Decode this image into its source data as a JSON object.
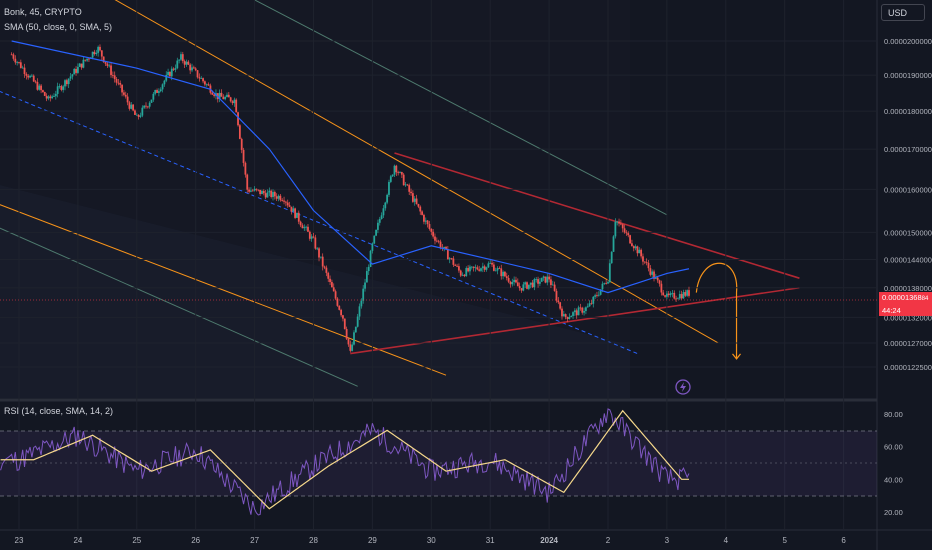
{
  "header": {
    "title": "Bonk, 45, CRYPTO",
    "sma_legend": "SMA (50, close, 0, SMA, 5)",
    "currency": "USD"
  },
  "rsi_legend": "RSI (14, close, SMA, 14, 2)",
  "last_price": {
    "value": "0.00001368",
    "value_suffix": "84",
    "countdown": "44:24"
  },
  "colors": {
    "background": "#131722",
    "candle_up": "#26a69a",
    "candle_down": "#ef5350",
    "sma": "#2962ff",
    "channel_orange": "#f7931a",
    "channel_green": "#4e7a6e",
    "wedge_red": "#b22833",
    "median_dashed": "#2962ff",
    "rsi_line": "#7e57c2",
    "rsi_ma": "#f5d88b",
    "rsi_band": "#7e57c2",
    "projection": "#f7931a",
    "price_line": "#f23645"
  },
  "chart_data": [
    {
      "type": "candlestick",
      "symbol": "Bonk",
      "interval": "45",
      "x_tick_labels": [
        "23",
        "24",
        "25",
        "26",
        "27",
        "28",
        "29",
        "30",
        "31",
        "2024",
        "2",
        "3",
        "4",
        "5",
        "6"
      ],
      "y_tick_labels": [
        "0.0000200000",
        "0.0000190000",
        "0.0000180000",
        "0.0000170000",
        "0.0000160000",
        "0.0000150000",
        "0.0000144000",
        "0.0000138000",
        "0.0000132000",
        "0.0000127000",
        "0.0000122500"
      ],
      "y_scale": "log",
      "approx_close_path": [
        {
          "x": "Dec 22 21:00",
          "y": 1.96e-05
        },
        {
          "x": "Dec 23 12:00",
          "y": 1.83e-05
        },
        {
          "x": "Dec 24 00:00",
          "y": 1.92e-05
        },
        {
          "x": "Dec 24 08:00",
          "y": 1.98e-05
        },
        {
          "x": "Dec 25 00:00",
          "y": 1.78e-05
        },
        {
          "x": "Dec 25 18:00",
          "y": 1.95e-05
        },
        {
          "x": "Dec 26 09:00",
          "y": 1.84e-05
        },
        {
          "x": "Dec 26 16:00",
          "y": 1.83e-05
        },
        {
          "x": "Dec 26 21:00",
          "y": 1.6e-05
        },
        {
          "x": "Dec 27 12:00",
          "y": 1.58e-05
        },
        {
          "x": "Dec 28 00:00",
          "y": 1.48e-05
        },
        {
          "x": "Dec 28 12:00",
          "y": 1.32e-05
        },
        {
          "x": "Dec 28 15:00",
          "y": 1.25e-05
        },
        {
          "x": "Dec 29 00:00",
          "y": 1.47e-05
        },
        {
          "x": "Dec 29 09:00",
          "y": 1.66e-05
        },
        {
          "x": "Dec 30 00:00",
          "y": 1.5e-05
        },
        {
          "x": "Dec 30 12:00",
          "y": 1.41e-05
        },
        {
          "x": "Dec 31 00:00",
          "y": 1.43e-05
        },
        {
          "x": "Dec 31 12:00",
          "y": 1.38e-05
        },
        {
          "x": "Jan 1 00:00",
          "y": 1.4e-05
        },
        {
          "x": "Jan 1 06:00",
          "y": 1.32e-05
        },
        {
          "x": "Jan 1 16:00",
          "y": 1.34e-05
        },
        {
          "x": "Jan 2 00:00",
          "y": 1.4e-05
        },
        {
          "x": "Jan 2 03:00",
          "y": 1.53e-05
        },
        {
          "x": "Jan 2 12:00",
          "y": 1.46e-05
        },
        {
          "x": "Jan 3 00:00",
          "y": 1.36e-05
        },
        {
          "x": "Jan 3 09:00",
          "y": 1.369e-05
        }
      ],
      "approx_sma_path": [
        {
          "x": "Dec 22 21:00",
          "y": 2e-05
        },
        {
          "x": "Dec 25 00:00",
          "y": 1.92e-05
        },
        {
          "x": "Dec 26 06:00",
          "y": 1.86e-05
        },
        {
          "x": "Dec 27 06:00",
          "y": 1.7e-05
        },
        {
          "x": "Dec 28 00:00",
          "y": 1.55e-05
        },
        {
          "x": "Dec 29 00:00",
          "y": 1.43e-05
        },
        {
          "x": "Dec 30 00:00",
          "y": 1.47e-05
        },
        {
          "x": "Dec 31 00:00",
          "y": 1.44e-05
        },
        {
          "x": "Jan 1 00:00",
          "y": 1.41e-05
        },
        {
          "x": "Jan 2 00:00",
          "y": 1.37e-05
        },
        {
          "x": "Jan 3 00:00",
          "y": 1.41e-05
        },
        {
          "x": "Jan 3 09:00",
          "y": 1.42e-05
        }
      ],
      "last_price": 1.36884e-05
    },
    {
      "type": "line",
      "indicator": "RSI",
      "y_tick_labels": [
        "80.00",
        "60.00",
        "40.00",
        "20.00"
      ],
      "levels": [
        70,
        50,
        30
      ],
      "approx_rsi_path": [
        {
          "x": "Dec 23",
          "y": 52
        },
        {
          "x": "Dec 24",
          "y": 67
        },
        {
          "x": "Dec 25",
          "y": 45
        },
        {
          "x": "Dec 26",
          "y": 58
        },
        {
          "x": "Dec 27",
          "y": 22
        },
        {
          "x": "Dec 28",
          "y": 48
        },
        {
          "x": "Dec 29",
          "y": 70
        },
        {
          "x": "Dec 30",
          "y": 45
        },
        {
          "x": "Dec 31",
          "y": 52
        },
        {
          "x": "2024",
          "y": 32
        },
        {
          "x": "Jan 2",
          "y": 82
        },
        {
          "x": "Jan 3",
          "y": 40
        }
      ]
    }
  ]
}
